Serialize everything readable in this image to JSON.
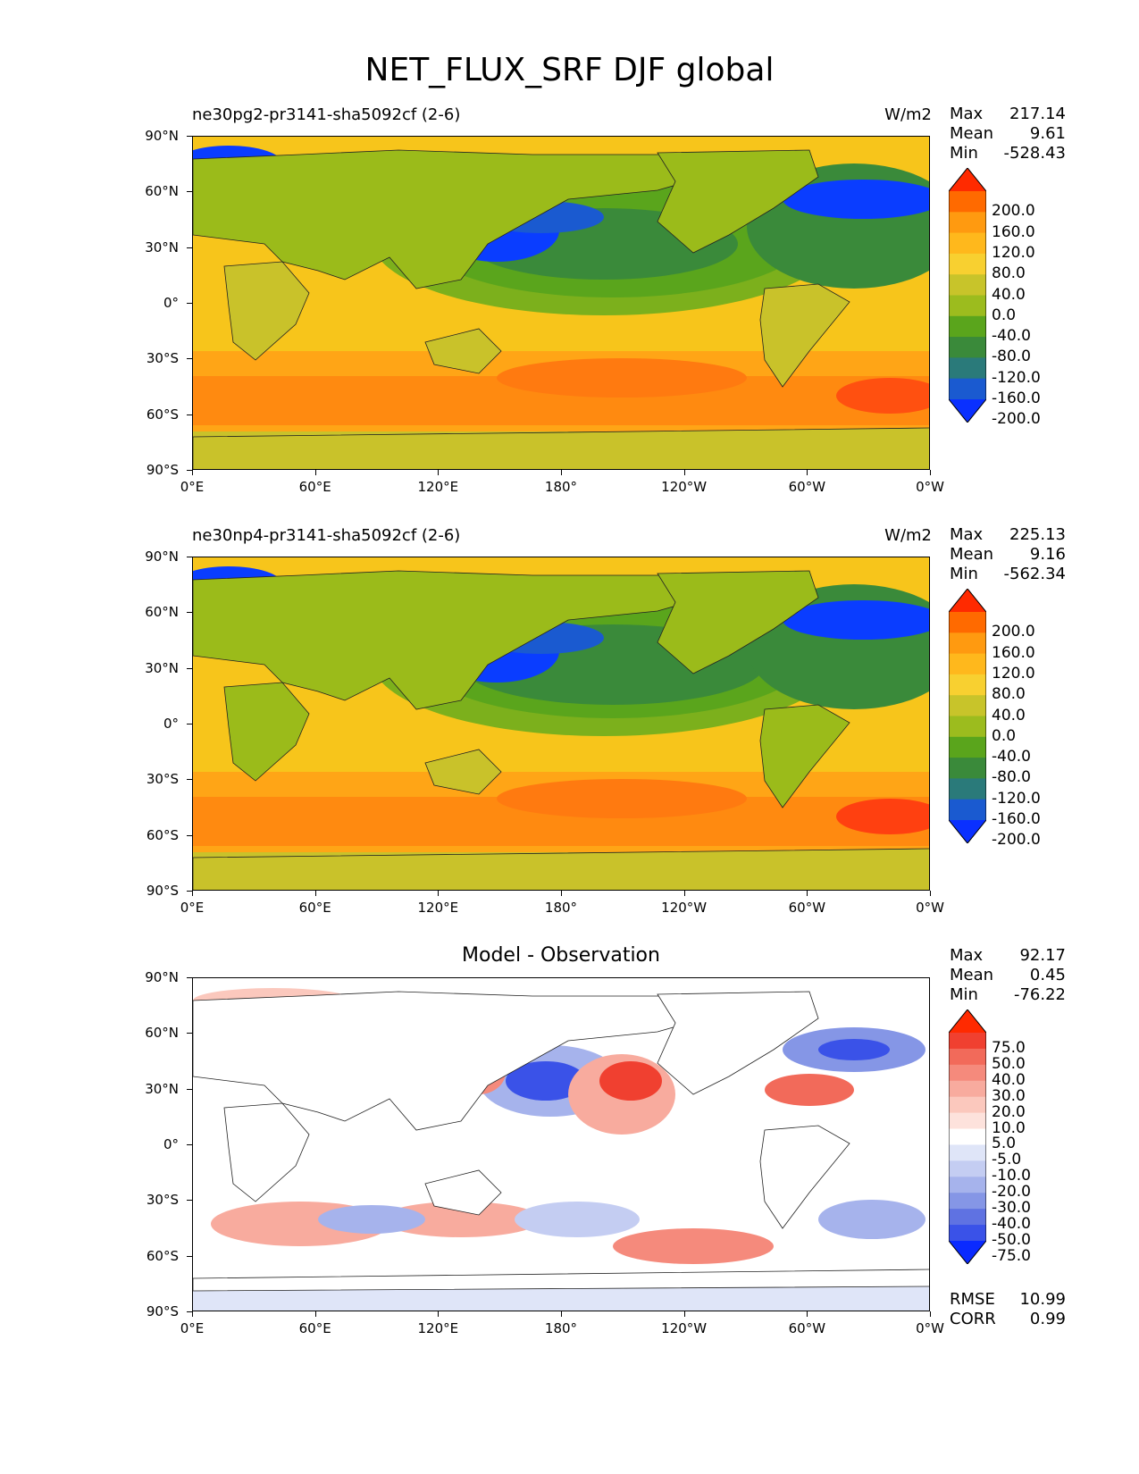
{
  "figure": {
    "title": "NET_FLUX_SRF DJF global"
  },
  "axes": {
    "y_ticks": [
      "90°N",
      "60°N",
      "30°N",
      "0°",
      "30°S",
      "60°S",
      "90°S"
    ],
    "x_ticks": [
      "0°E",
      "60°E",
      "120°E",
      "180°",
      "120°W",
      "60°W",
      "0°W"
    ]
  },
  "panels": [
    {
      "title_left": "ne30pg2-pr3141-sha5092cf (2-6)",
      "title_center": "",
      "units": "W/m2",
      "stats": {
        "max_label": "Max",
        "max": "217.14",
        "mean_label": "Mean",
        "mean": "9.61",
        "min_label": "Min",
        "min": "-528.43"
      },
      "colorbar": {
        "labels": [
          "200.0",
          "160.0",
          "120.0",
          "80.0",
          "40.0",
          "0.0",
          "-40.0",
          "-80.0",
          "-120.0",
          "-160.0",
          "-200.0"
        ],
        "colors": [
          "#ff2a00",
          "#ff6a00",
          "#ff9a10",
          "#ffb81c",
          "#f8d030",
          "#c8c42a",
          "#9cbc1e",
          "#5aa51c",
          "#3a8a3a",
          "#2a7a7a",
          "#1a5ad0",
          "#0a30ff"
        ]
      },
      "palette": {
        "land": "#9bbb1a",
        "ocean_mid": "#f7c51b",
        "ocean_south": "#ff8a10",
        "ocean_cold": "#0a3dff",
        "ocean_nw": "#3a8a3a",
        "antarctic": "#c9c22a"
      }
    },
    {
      "title_left": "ne30np4-pr3141-sha5092cf (2-6)",
      "title_center": "",
      "units": "W/m2",
      "stats": {
        "max_label": "Max",
        "max": "225.13",
        "mean_label": "Mean",
        "mean": "9.16",
        "min_label": "Min",
        "min": "-562.34"
      },
      "colorbar": {
        "labels": [
          "200.0",
          "160.0",
          "120.0",
          "80.0",
          "40.0",
          "0.0",
          "-40.0",
          "-80.0",
          "-120.0",
          "-160.0",
          "-200.0"
        ],
        "colors": [
          "#ff2a00",
          "#ff6a00",
          "#ff9a10",
          "#ffb81c",
          "#f8d030",
          "#c8c42a",
          "#9cbc1e",
          "#5aa51c",
          "#3a8a3a",
          "#2a7a7a",
          "#1a5ad0",
          "#0a30ff"
        ]
      },
      "palette": {
        "land": "#9bbb1a",
        "ocean_mid": "#f7c51b",
        "ocean_south": "#ff8a10",
        "ocean_cold": "#0a3dff",
        "ocean_nw": "#3a8a3a",
        "antarctic": "#c9c22a"
      }
    },
    {
      "title_left": "",
      "title_center": "Model - Observation",
      "units": "",
      "stats": {
        "max_label": "Max",
        "max": "92.17",
        "mean_label": "Mean",
        "mean": "0.45",
        "min_label": "Min",
        "min": "-76.22"
      },
      "colorbar": {
        "labels": [
          "75.0",
          "50.0",
          "40.0",
          "30.0",
          "20.0",
          "10.0",
          "5.0",
          "-5.0",
          "-10.0",
          "-20.0",
          "-30.0",
          "-40.0",
          "-50.0",
          "-75.0"
        ],
        "colors": [
          "#ff2a00",
          "#f04030",
          "#f26a5a",
          "#f58a7c",
          "#f8ab9e",
          "#fbc8bd",
          "#fde2dc",
          "#ffffff",
          "#dfe5f8",
          "#c4cdf2",
          "#a6b3ec",
          "#8596e6",
          "#5f72e2",
          "#3a52e8",
          "#0a2aff"
        ]
      },
      "extra": {
        "rmse_label": "RMSE",
        "rmse": "10.99",
        "corr_label": "CORR",
        "corr": "0.99"
      },
      "palette": {
        "land": "#ffffff",
        "pos": "#f4a090",
        "neg": "#8fa0ec",
        "strong_pos": "#e8504a",
        "strong_neg": "#3050e6"
      }
    }
  ]
}
